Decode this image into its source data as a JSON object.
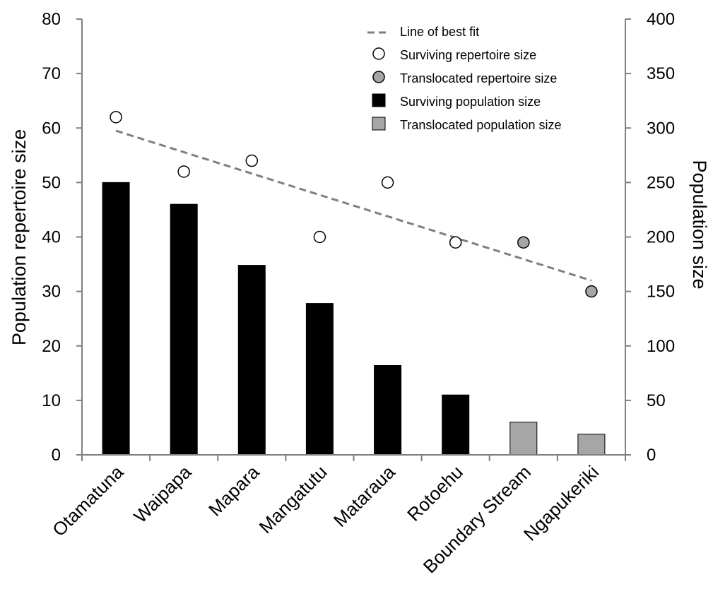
{
  "chart_data": {
    "type": "bar",
    "categories": [
      "Otamatuna",
      "Waipapa",
      "Mapara",
      "Mangatutu",
      "Mataraua",
      "Rotoehu",
      "Boundary Stream",
      "Ngapukeriki"
    ],
    "bar_values": [
      250,
      230,
      174,
      139,
      82,
      55,
      30,
      19
    ],
    "bar_types": [
      "surviving",
      "surviving",
      "surviving",
      "surviving",
      "surviving",
      "surviving",
      "translocated",
      "translocated"
    ],
    "point_values": [
      62,
      52,
      54,
      40,
      50,
      39,
      39,
      30
    ],
    "point_types": [
      "surviving",
      "surviving",
      "surviving",
      "surviving",
      "surviving",
      "surviving",
      "translocated",
      "translocated"
    ],
    "fit_line": {
      "start": 59.5,
      "end": 32
    },
    "left_axis": {
      "label": "Population repertoire size",
      "min": 0,
      "max": 80,
      "ticks": [
        0,
        10,
        20,
        30,
        40,
        50,
        60,
        70,
        80
      ]
    },
    "right_axis": {
      "label": "Population size",
      "min": 0,
      "max": 400,
      "ticks": [
        0,
        50,
        100,
        150,
        200,
        250,
        300,
        350,
        400
      ]
    },
    "legend": [
      {
        "key": "fit",
        "label": "Line of best fit"
      },
      {
        "key": "surv_rep",
        "label": "Surviving repertoire size"
      },
      {
        "key": "trans_rep",
        "label": "Translocated repertoire size"
      },
      {
        "key": "surv_pop",
        "label": "Surviving population size"
      },
      {
        "key": "trans_pop",
        "label": "Translocated population size"
      }
    ],
    "colors": {
      "surviving_bar": "#000000",
      "translocated_bar": "#a6a6a6",
      "surviving_point": "#ffffff",
      "translocated_point": "#a6a6a6",
      "fit_line": "#7f7f7f",
      "axis": "#7f7f7f"
    },
    "legend_position": "top-right",
    "grid": false
  }
}
